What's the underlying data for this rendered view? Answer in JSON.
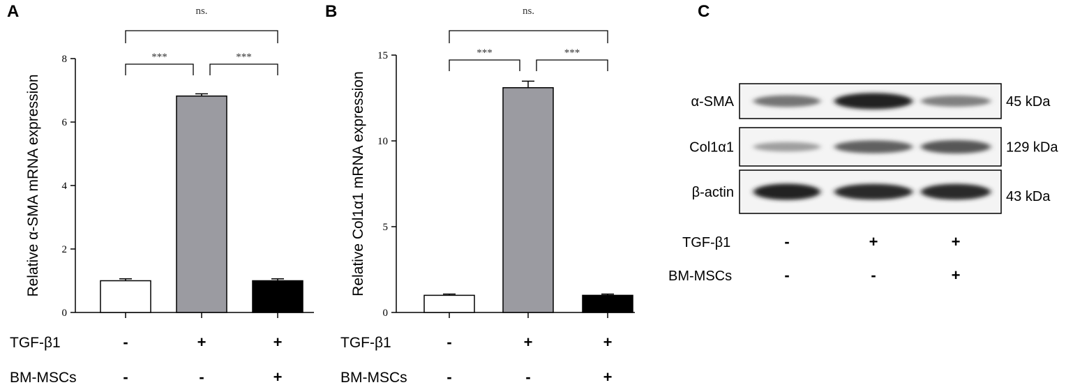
{
  "panels": {
    "a": "A",
    "b": "B",
    "c": "C"
  },
  "chart_data": [
    {
      "type": "bar",
      "panel": "A",
      "ylabel": "Relative α-SMA mRNA expression",
      "ylim": [
        0,
        8
      ],
      "yticks": [
        0,
        2,
        4,
        6,
        8
      ],
      "values": [
        1.0,
        6.82,
        1.0
      ],
      "errors": [
        0.06,
        0.07,
        0.06
      ],
      "bar_colors": [
        "#ffffff",
        "#9b9ba1",
        "#000000"
      ],
      "conditions": [
        {
          "label": "TGF-β1",
          "signs": [
            "-",
            "+",
            "+"
          ]
        },
        {
          "label": "BM-MSCs",
          "signs": [
            "-",
            "-",
            "+"
          ]
        }
      ],
      "significance": [
        {
          "from": 0,
          "to": 2,
          "label": "ns."
        },
        {
          "from": 0,
          "to": 1,
          "label": "***"
        },
        {
          "from": 1,
          "to": 2,
          "label": "***"
        }
      ]
    },
    {
      "type": "bar",
      "panel": "B",
      "ylabel": "Relative Col1α1 mRNA expression",
      "ylim": [
        0,
        15
      ],
      "yticks": [
        0,
        5,
        10,
        15
      ],
      "values": [
        1.0,
        13.1,
        1.0
      ],
      "errors": [
        0.07,
        0.38,
        0.07
      ],
      "bar_colors": [
        "#ffffff",
        "#9b9ba1",
        "#000000"
      ],
      "conditions": [
        {
          "label": "TGF-β1",
          "signs": [
            "-",
            "+",
            "+"
          ]
        },
        {
          "label": "BM-MSCs",
          "signs": [
            "-",
            "-",
            "+"
          ]
        }
      ],
      "significance": [
        {
          "from": 0,
          "to": 2,
          "label": "ns."
        },
        {
          "from": 0,
          "to": 1,
          "label": "***"
        },
        {
          "from": 1,
          "to": 2,
          "label": "***"
        }
      ]
    }
  ],
  "blot": {
    "bands": [
      {
        "label": "α-SMA",
        "size": "45 kDa",
        "intensity": [
          0.55,
          0.95,
          0.5
        ]
      },
      {
        "label": "Col1α1",
        "size": "129 kDa",
        "intensity": [
          0.35,
          0.65,
          0.7
        ]
      },
      {
        "label": "β-actin",
        "size": "43 kDa",
        "intensity": [
          0.95,
          0.92,
          0.92
        ]
      }
    ],
    "conditions": [
      {
        "label": "TGF-β1",
        "signs": [
          "-",
          "+",
          "+"
        ]
      },
      {
        "label": "BM-MSCs",
        "signs": [
          "-",
          "-",
          "+"
        ]
      }
    ]
  }
}
